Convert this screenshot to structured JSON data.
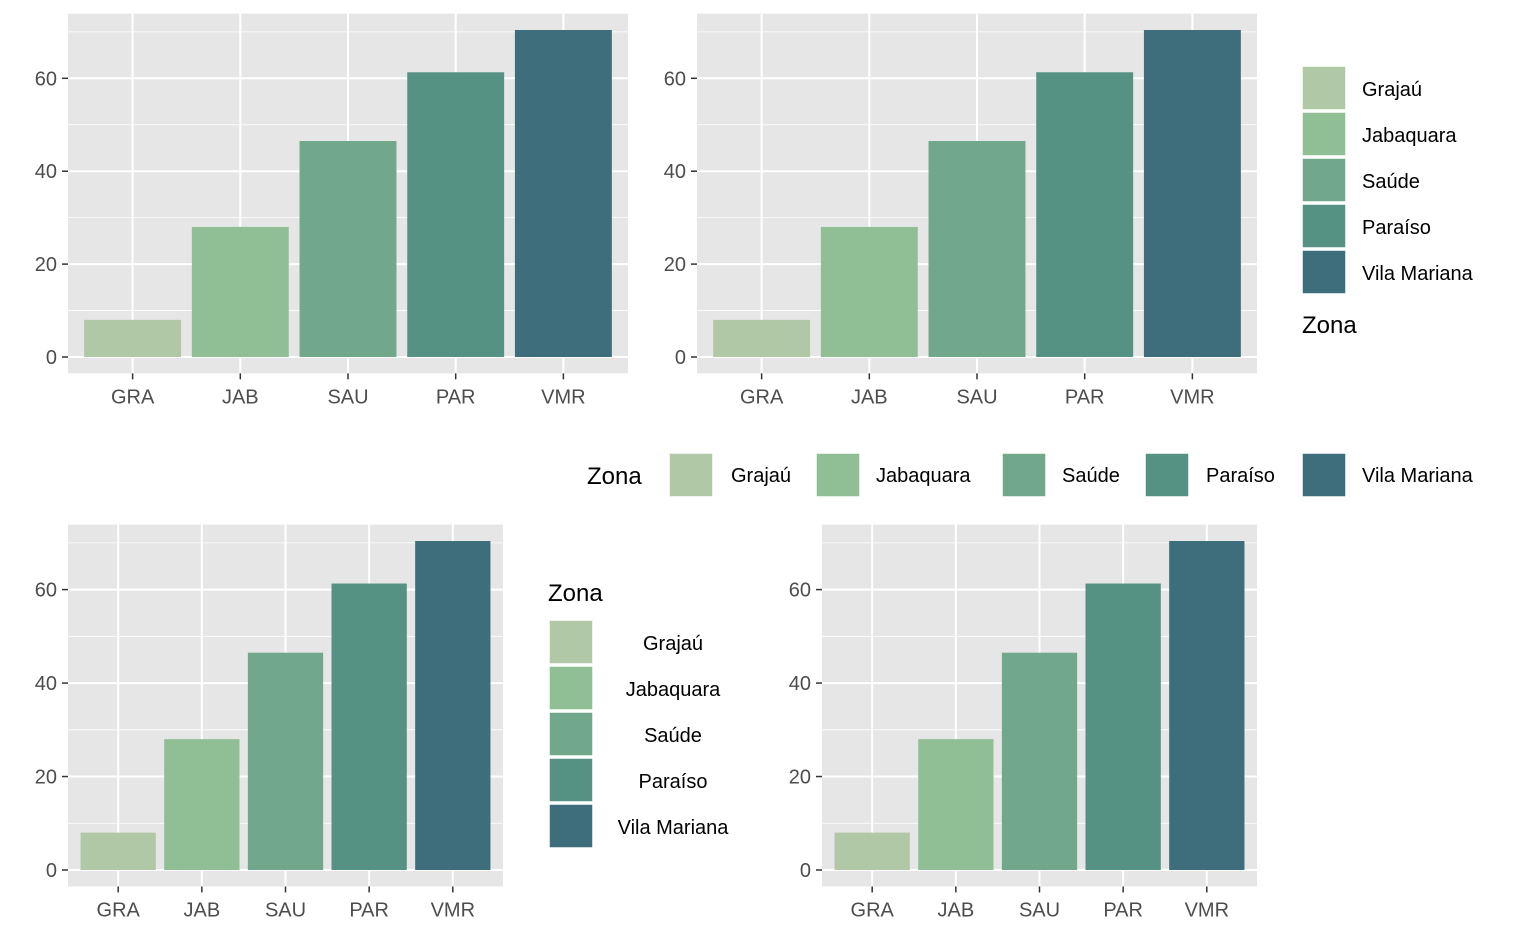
{
  "palette": [
    "#b1c8a7",
    "#91bf95",
    "#71a88c",
    "#559283",
    "#3e6e7b"
  ],
  "panel_background": "#e6e6e6",
  "grid_color": "#ffffff",
  "legend": {
    "title": "Zona",
    "labels": [
      "Grajaú",
      "Jabaquara",
      "Saúde",
      "Paraíso",
      "Vila Mariana"
    ]
  },
  "chart_data": [
    {
      "type": "bar",
      "categories": [
        "GRA",
        "JAB",
        "SAU",
        "PAR",
        "VMR"
      ],
      "values": [
        8,
        28,
        46.5,
        61.3,
        70.4
      ],
      "ylim": [
        0,
        70.4
      ],
      "yticks": [
        0,
        20,
        40,
        60
      ],
      "grid": true,
      "legend_position": "none"
    },
    {
      "type": "bar",
      "categories": [
        "GRA",
        "JAB",
        "SAU",
        "PAR",
        "VMR"
      ],
      "values": [
        8,
        28,
        46.5,
        61.3,
        70.4
      ],
      "ylim": [
        0,
        70.4
      ],
      "yticks": [
        0,
        20,
        40,
        60
      ],
      "grid": true,
      "legend_position": "right"
    },
    {
      "type": "bar",
      "categories": [
        "GRA",
        "JAB",
        "SAU",
        "PAR",
        "VMR"
      ],
      "values": [
        8,
        28,
        46.5,
        61.3,
        70.4
      ],
      "ylim": [
        0,
        70.4
      ],
      "yticks": [
        0,
        20,
        40,
        60
      ],
      "grid": true,
      "legend_position": "right"
    },
    {
      "type": "bar",
      "categories": [
        "GRA",
        "JAB",
        "SAU",
        "PAR",
        "VMR"
      ],
      "values": [
        8,
        28,
        46.5,
        61.3,
        70.4
      ],
      "ylim": [
        0,
        70.4
      ],
      "yticks": [
        0,
        20,
        40,
        60
      ],
      "grid": true,
      "legend_position": "none"
    }
  ]
}
